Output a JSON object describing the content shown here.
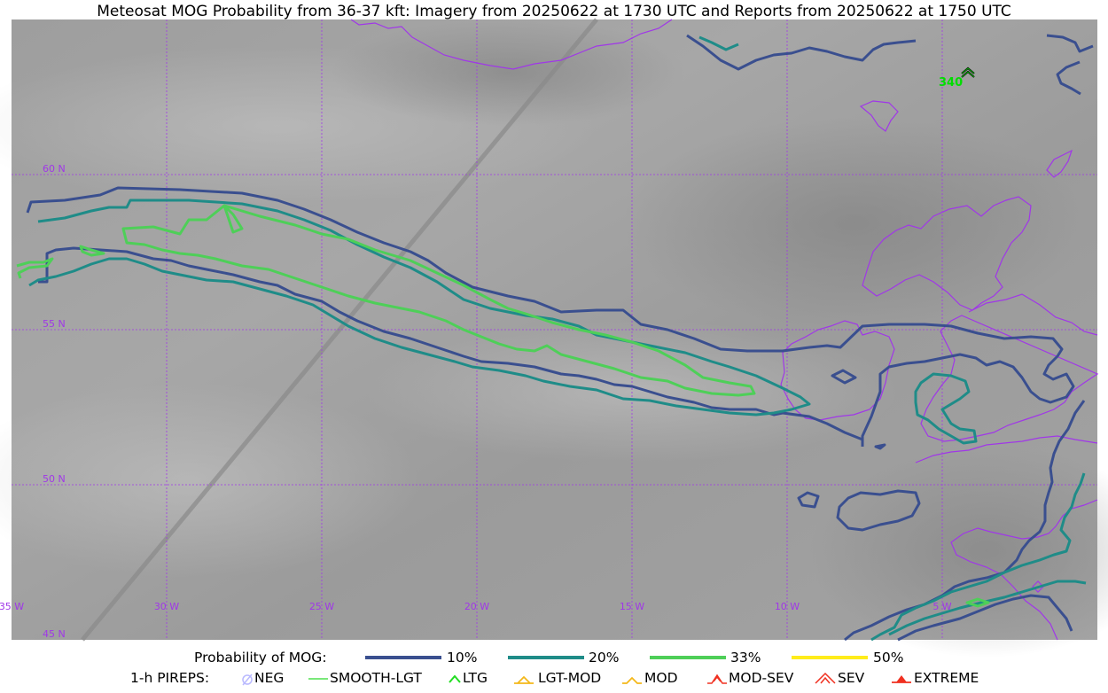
{
  "title": "Meteosat MOG Probability from 36-37 kft: Imagery from 20250622 at 1730 UTC and Reports from 20250622 at 1750 UTC",
  "map": {
    "lat_labels": [
      "60 N",
      "55 N",
      "50 N",
      "45 N"
    ],
    "lon_labels": [
      "35 W",
      "30 W",
      "25 W",
      "20 W",
      "15 W",
      "10 W",
      "5 W"
    ],
    "extent": {
      "lon": [
        -35,
        0
      ],
      "lat": [
        45,
        65
      ]
    },
    "report": {
      "value": "340",
      "type": "LTG",
      "color": "#00dd00"
    },
    "colors": {
      "coast": "#a037e8",
      "grid": "#a037e8",
      "p10": "#3a4f8f",
      "p20": "#1f8c88",
      "p33": "#4ecf58",
      "p50": "#ffec1a"
    }
  },
  "legend": {
    "probability_label": "Probability of MOG:",
    "levels": [
      {
        "label": "10%",
        "color": "#3a4f8f"
      },
      {
        "label": "20%",
        "color": "#1f8c88"
      },
      {
        "label": "33%",
        "color": "#4ecf58"
      },
      {
        "label": "50%",
        "color": "#ffec1a"
      }
    ],
    "pireps_label": "1-h PIREPS:",
    "pireps": [
      {
        "label": "NEG",
        "icon": "neg-icon",
        "color": "#b9b9ff"
      },
      {
        "label": "SMOOTH-LGT",
        "icon": "smooth-lgt-icon",
        "color": "#4ee04e"
      },
      {
        "label": "LTG",
        "icon": "ltg-icon",
        "color": "#22dd22"
      },
      {
        "label": "LGT-MOD",
        "icon": "lgt-mod-icon",
        "color": "#f4b81a"
      },
      {
        "label": "MOD",
        "icon": "mod-icon",
        "color": "#f4b81a"
      },
      {
        "label": "MOD-SEV",
        "icon": "mod-sev-icon",
        "color": "#f03020"
      },
      {
        "label": "SEV",
        "icon": "sev-icon",
        "color": "#f03020"
      },
      {
        "label": "EXTREME",
        "icon": "extreme-icon",
        "color": "#f03020"
      }
    ]
  }
}
